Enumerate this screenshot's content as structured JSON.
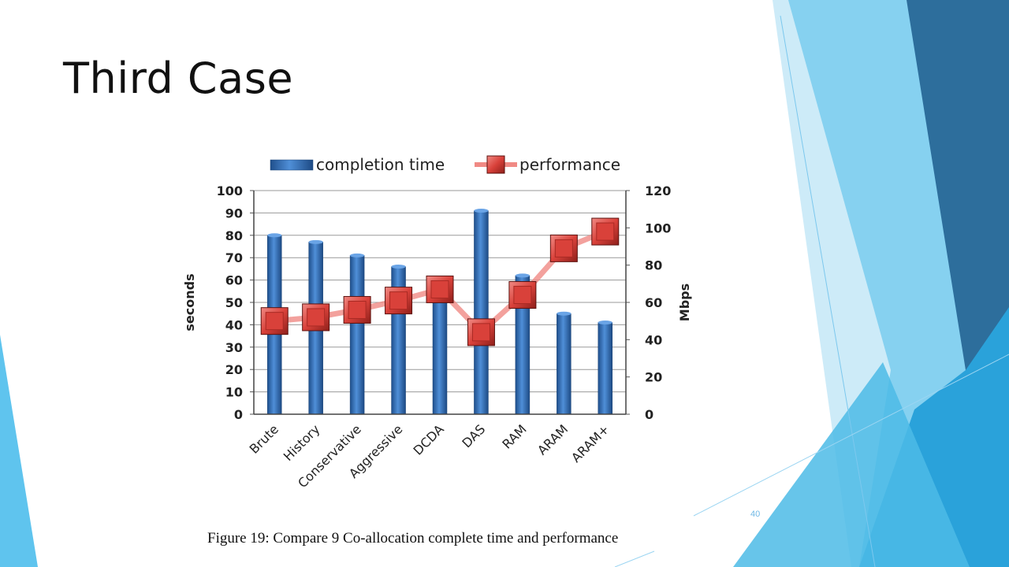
{
  "slide": {
    "title": "Third Case",
    "caption": "Figure 19: Compare 9 Co-allocation complete time and performance",
    "number": "40",
    "colors": {
      "accent_dark": "#2d6e9c",
      "accent_mid": "#2aa2da",
      "accent_light": "#86d1f0",
      "accent_pale": "#cdebf8"
    }
  },
  "chart_data": {
    "type": "bar",
    "categories": [
      "Brute",
      "History",
      "Conservative",
      "Aggressive",
      "DCDA",
      "DAS",
      "RAM",
      "ARAM",
      "ARAM+"
    ],
    "series": [
      {
        "name": "completion time",
        "type": "bar",
        "axis": "left",
        "color": "#2f6db5",
        "values": [
          80,
          77,
          71,
          66,
          53,
          91,
          62,
          45,
          41
        ]
      },
      {
        "name": "performance",
        "type": "line",
        "axis": "right",
        "color": "#d9413a",
        "values": [
          50,
          52,
          56,
          61,
          67,
          44,
          64,
          89,
          98
        ]
      }
    ],
    "ylabel": "seconds",
    "y2label": "Mbps",
    "ylim": [
      0,
      100
    ],
    "y2lim": [
      0,
      120
    ],
    "yticks": [
      0,
      10,
      20,
      30,
      40,
      50,
      60,
      70,
      80,
      90,
      100
    ],
    "y2ticks": [
      0,
      20,
      40,
      60,
      80,
      100,
      120
    ],
    "grid": true,
    "legend": "top"
  }
}
